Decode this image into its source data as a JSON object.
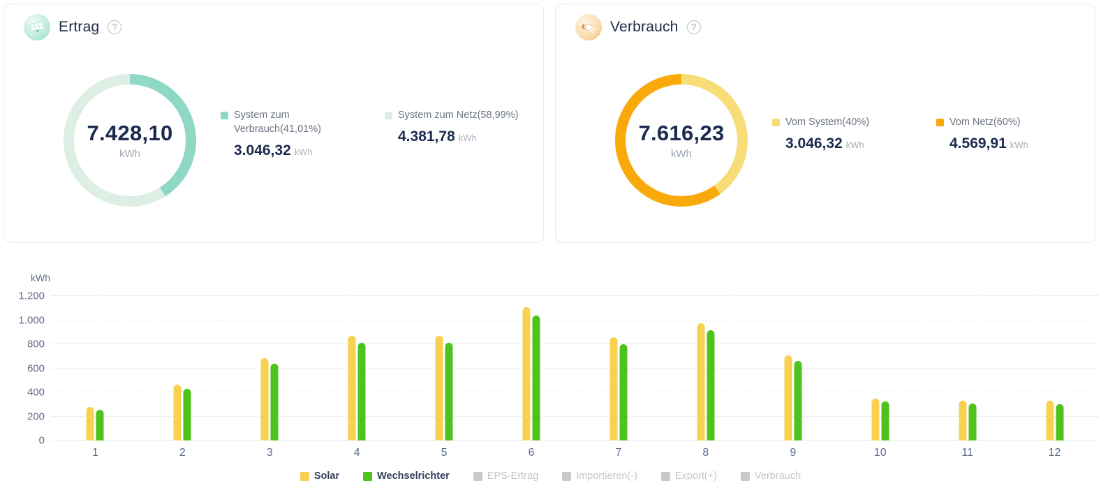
{
  "ertrag_card": {
    "title": "Ertrag",
    "total": {
      "value": "7.428,10",
      "unit": "kWh"
    },
    "segments": [
      {
        "label": "System zum Verbrauch(41,01%)",
        "value": "3.046,32",
        "unit": "kWh",
        "percent": 41.01,
        "color": "#8ED8C5"
      },
      {
        "label": "System zum Netz(58,99%)",
        "value": "4.381,78",
        "unit": "kWh",
        "percent": 58.99,
        "color": "#DDEFE5"
      }
    ]
  },
  "verbrauch_card": {
    "title": "Verbrauch",
    "total": {
      "value": "7.616,23",
      "unit": "kWh"
    },
    "segments": [
      {
        "label": "Vom System(40%)",
        "value": "3.046,32",
        "unit": "kWh",
        "percent": 40,
        "color": "#F8DC77"
      },
      {
        "label": "Vom Netz(60%)",
        "value": "4.569,91",
        "unit": "kWh",
        "percent": 60,
        "color": "#FAA90B"
      }
    ]
  },
  "chart_data": {
    "type": "bar",
    "ylabel": "kWh",
    "categories": [
      "1",
      "2",
      "3",
      "4",
      "5",
      "6",
      "7",
      "8",
      "9",
      "10",
      "11",
      "12"
    ],
    "series": [
      {
        "name": "Solar",
        "color": "#F7D14F",
        "values": [
          280,
          465,
          685,
          870,
          870,
          1110,
          860,
          975,
          705,
          350,
          330,
          330
        ]
      },
      {
        "name": "Wechselrichter",
        "color": "#4EC31E",
        "values": [
          255,
          430,
          640,
          810,
          810,
          1040,
          800,
          915,
          660,
          325,
          305,
          300
        ]
      }
    ],
    "legend": [
      {
        "label": "Solar",
        "color": "#F7D14F",
        "enabled": true
      },
      {
        "label": "Wechselrichter",
        "color": "#4EC31E",
        "enabled": true
      },
      {
        "label": "EPS-Ertrag",
        "color": "#C9C9C9",
        "enabled": false
      },
      {
        "label": "Importieren(-)",
        "color": "#C9C9C9",
        "enabled": false
      },
      {
        "label": "Export(+)",
        "color": "#C9C9C9",
        "enabled": false
      },
      {
        "label": "Verbrauch",
        "color": "#C9C9C9",
        "enabled": false
      }
    ],
    "yticks": [
      {
        "label": "1.200",
        "value": 1200
      },
      {
        "label": "1.000",
        "value": 1000
      },
      {
        "label": "800",
        "value": 800
      },
      {
        "label": "600",
        "value": 600
      },
      {
        "label": "400",
        "value": 400
      },
      {
        "label": "200",
        "value": 200
      },
      {
        "label": "0",
        "value": 0
      }
    ],
    "ylim": [
      0,
      1200
    ],
    "grid": "dashed horizontal",
    "legend_position": "bottom"
  }
}
